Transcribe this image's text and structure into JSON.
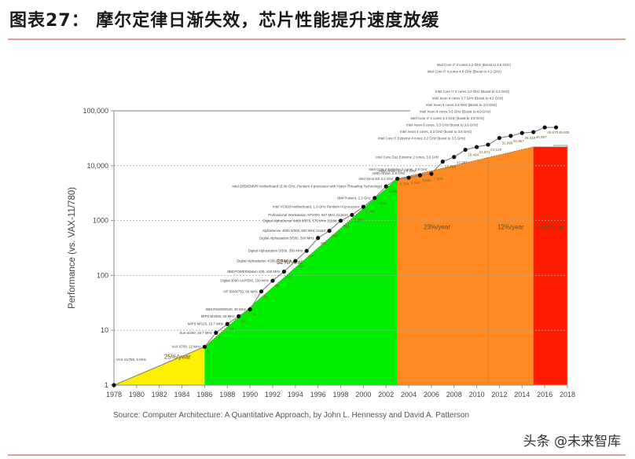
{
  "header": {
    "title": "图表27：  摩尔定律日渐失效，芯片性能提升速度放缓"
  },
  "footer": {
    "source": "Source: Computer Architecture: A Quantitative Approach, by John L. Hennessy and David A. Patterson",
    "watermark": "头条 @未来智库"
  },
  "colors": {
    "yellow_region": "#ffef00",
    "green_region": "#00ee00",
    "orange_region": "#ff8a22",
    "red_region": "#ff1a00",
    "title_rule": "#e89a8f",
    "line": "#888888",
    "point": "#111111"
  },
  "chart_data": {
    "type": "line",
    "title": "",
    "xlabel": "",
    "ylabel": "Performance (vs. VAX-11/780)",
    "yscale": "log",
    "ylim": [
      1,
      100000
    ],
    "xlim": [
      1978,
      2018
    ],
    "y_ticks": [
      "1",
      "10",
      "100",
      "1000",
      "10,000",
      "100,000"
    ],
    "x_ticks": [
      "1978",
      "1980",
      "1982",
      "1984",
      "1986",
      "1988",
      "1990",
      "1992",
      "1994",
      "1996",
      "1998",
      "2000",
      "2002",
      "2004",
      "2006",
      "2008",
      "2010",
      "2012",
      "2014",
      "2016",
      "2018"
    ],
    "grid": "horizontal dashed",
    "regions": [
      {
        "from": 1978,
        "to": 1986,
        "label": "25%/year",
        "color": "#ffef00"
      },
      {
        "from": 1986,
        "to": 2003,
        "label": "52%/year",
        "color": "#00ee00"
      },
      {
        "from": 2003,
        "to": 2011,
        "label": "23%/year",
        "color": "#ff8a22"
      },
      {
        "from": 2011,
        "to": 2015,
        "label": "12%/year",
        "color": "#ff8a22"
      },
      {
        "from": 2015,
        "to": 2018,
        "label": "3.5%/year",
        "color": "#ff1a00"
      }
    ],
    "series": [
      {
        "name": "Processor performance",
        "points": [
          {
            "x": 1978,
            "y": 1,
            "label": "VAX-11/780, 5 MHz"
          },
          {
            "x": 1986,
            "y": 5,
            "label": "VAX 8700, 22 MHz"
          },
          {
            "x": 1987,
            "y": 9,
            "label": "Sun-4/260, 16.7 MHz"
          },
          {
            "x": 1988,
            "y": 13,
            "label": "MIPS M/120, 16.7 MHz"
          },
          {
            "x": 1989,
            "y": 18,
            "label": "MIPS M2000, 25 MHz"
          },
          {
            "x": 1990,
            "y": 24,
            "label": "IBM RS6000/540, 30 MHz"
          },
          {
            "x": 1991,
            "y": 51,
            "label": "HP 9000/750, 66 MHz"
          },
          {
            "x": 1992,
            "y": 80,
            "label": "Digital 3000 AXP/500, 150 MHz"
          },
          {
            "x": 1993,
            "y": 117,
            "label": "IBM POWERstation 100, 150 MHz"
          },
          {
            "x": 1994,
            "y": 183,
            "label": "Digital Alphastation 4/266, 266 MHz"
          },
          {
            "x": 1995,
            "y": 280,
            "label": "Digital Alphastation 5/300, 300 MHz"
          },
          {
            "x": 1996,
            "y": 481,
            "label": "Digital Alphastation 5/500, 500 MHz"
          },
          {
            "x": 1997,
            "y": 649,
            "label": "AlphaServer 4000 5/600, 600 MHz 21164"
          },
          {
            "x": 1998,
            "y": 993,
            "label": "Digital AlphaServer 8400 6/575, 575 MHz 21264"
          },
          {
            "x": 1999,
            "y": 1267,
            "label": "Professional Workstation XP1000, 667 MHz 21264A"
          },
          {
            "x": 2000,
            "y": 1779,
            "label": "Intel VC820 motherboard, 1.0 GHz Pentium III processor"
          },
          {
            "x": 2001,
            "y": 2584,
            "label": "IBM Power4, 1.3 GHz"
          },
          {
            "x": 2002,
            "y": 4195,
            "label": "Intel D850EMVR motherboard (3.06 GHz, Pentium 4 processor with Hyper-Threading Technology)"
          },
          {
            "x": 2003,
            "y": 5764,
            "label": "Intel Xeon EE 3.2 GHz"
          },
          {
            "x": 2004,
            "y": 6043,
            "label": "AMD Athlon, 2.6 GHz"
          },
          {
            "x": 2005,
            "y": 6681,
            "label": "AMD Athlon 64, 2.8 GHz"
          },
          {
            "x": 2006,
            "y": 7108,
            "label": "Intel Core 2 Extreme 2 cores, 2.9 GHz"
          },
          {
            "x": 2007,
            "y": 11865,
            "label": "Intel Core Duo Extreme 2 cores, 3.0 GHz"
          },
          {
            "x": 2008,
            "y": 14387,
            "label": "Intel Core i7 Extreme 4 cores 3.2 GHz (boost to 3.5 GHz)"
          },
          {
            "x": 2009,
            "y": 19484,
            "label": "Intel Xeon 4 cores, 3.3 GHz (boost to 3.6 GHz)"
          },
          {
            "x": 2010,
            "y": 21871,
            "label": "Intel Xeon 6 cores, 3.3 GHz (boost to 3.6 GHz)"
          },
          {
            "x": 2011,
            "y": 24129,
            "label": "Intel Core i7 4 cores 3.4 GHz (boost to 3.8 GHz)"
          },
          {
            "x": 2012,
            "y": 31999,
            "label": "Intel Xeon 4 cores 3.6 GHz (Boost to 4.0 GHz)"
          },
          {
            "x": 2013,
            "y": 34967,
            "label": "Intel Xeon 4 cores 3.6 GHz (Boost to 4.0 GHz)"
          },
          {
            "x": 2014,
            "y": 39419,
            "label": "Intel Xeon 4 cores 3.7 GHz (Boost to 4.1 GHz)"
          },
          {
            "x": 2015,
            "y": 40967,
            "label": "Intel Core i7 4 cores 4.0 GHz (Boost to 4.2 GHz)"
          },
          {
            "x": 2016,
            "y": 49870,
            "label": "Intel Core i7 4 cores 4.0 GHz (Boost to 4.2 GHz)"
          },
          {
            "x": 2017,
            "y": 49935,
            "label": "Intel Core i7 4 cores 4.2 GHz (Boost to 4.5 GHz)"
          }
        ]
      }
    ],
    "value_annotations": [
      "5",
      "9",
      "13",
      "18",
      "24",
      "51",
      "80",
      "117",
      "183",
      "280",
      "481",
      "649",
      "993",
      "1,267",
      "1,779",
      "2,584",
      "4,195",
      "5,764",
      "6,043",
      "6,681",
      "7,108",
      "11,865",
      "14,387",
      "19,484",
      "21,871",
      "24,129",
      "31,999",
      "34,967",
      "39,419",
      "40,967",
      "49,870",
      "49,935"
    ]
  }
}
